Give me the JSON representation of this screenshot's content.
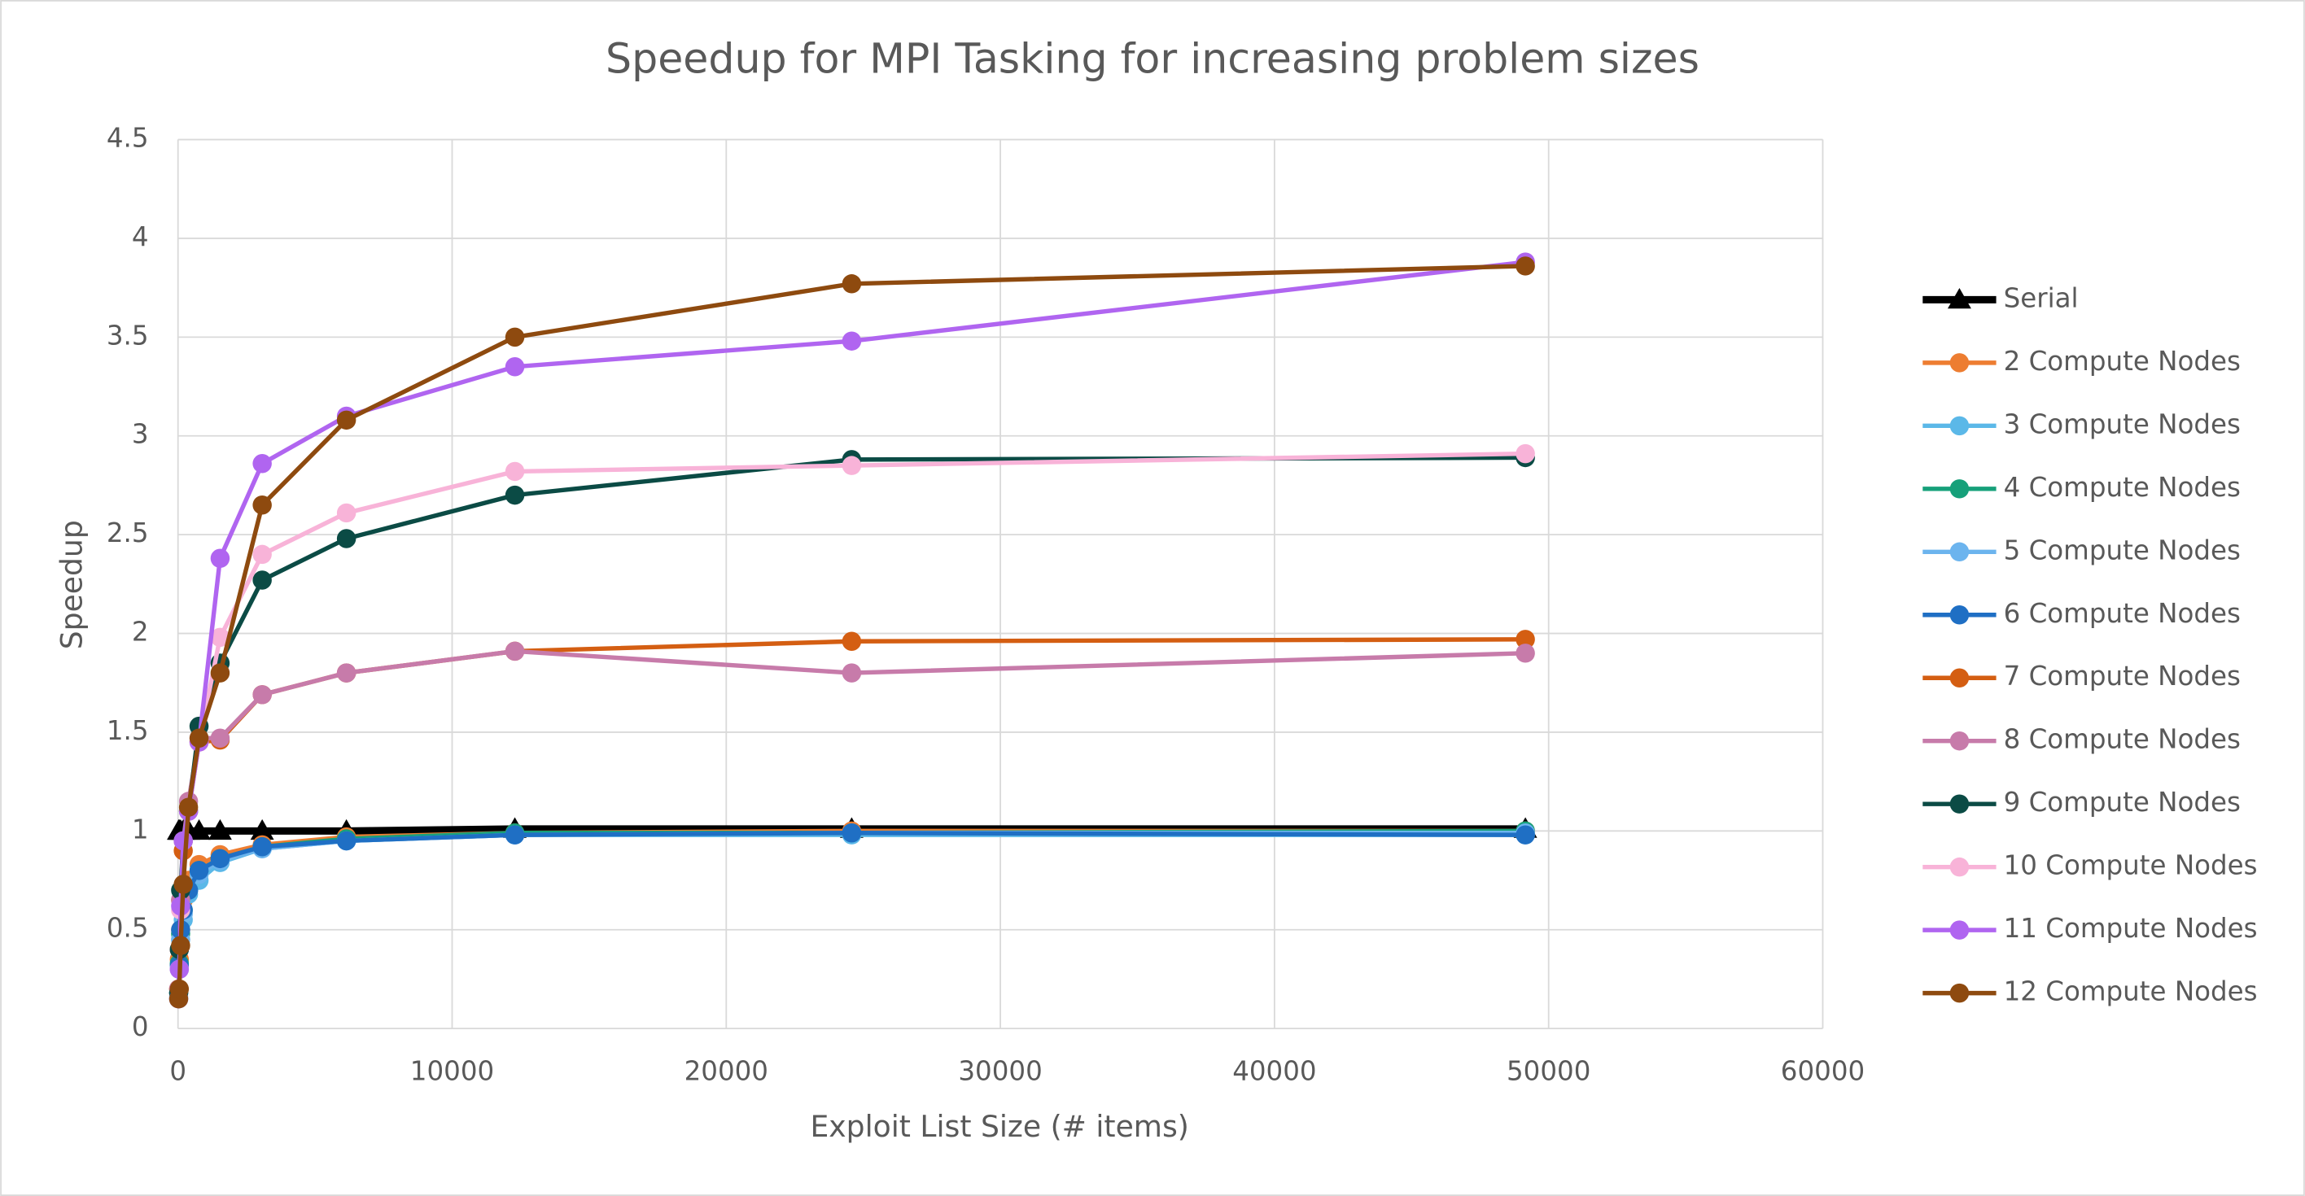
{
  "chart_data": {
    "type": "line",
    "title": "Speedup for MPI Tasking for increasing problem sizes",
    "x_label": "Exploit List Size (# items)",
    "y_label": "Speedup",
    "x": [
      24,
      48,
      96,
      192,
      384,
      768,
      1536,
      3072,
      6144,
      12288,
      24576,
      49152
    ],
    "xlim": [
      0,
      60000
    ],
    "xticks": [
      0,
      10000,
      20000,
      30000,
      40000,
      50000,
      60000
    ],
    "ylim": [
      0,
      4.5
    ],
    "yticks": [
      0,
      0.5,
      1,
      1.5,
      2,
      2.5,
      3,
      3.5,
      4,
      4.5
    ],
    "grid": true,
    "legend": "right",
    "series": [
      {
        "name": "Serial",
        "color": "#000000",
        "marker": "triangle",
        "values": [
          1,
          1,
          1,
          1,
          1,
          1,
          1,
          1,
          1,
          1.01,
          1.01,
          1.01
        ]
      },
      {
        "name": "2 Compute Nodes",
        "color": "#ED7D31",
        "values": [
          0.2,
          0.35,
          0.5,
          0.65,
          0.75,
          0.83,
          0.88,
          0.93,
          0.97,
          0.99,
          1.0,
          1.0
        ]
      },
      {
        "name": "3 Compute Nodes",
        "color": "#5BB8E8",
        "values": [
          0.15,
          0.3,
          0.45,
          0.55,
          0.68,
          0.75,
          0.84,
          0.91,
          0.95,
          0.98,
          0.98,
          0.98
        ]
      },
      {
        "name": "4 Compute Nodes",
        "color": "#16A07A",
        "values": [
          0.18,
          0.33,
          0.48,
          0.6,
          0.7,
          0.8,
          0.86,
          0.92,
          0.96,
          0.99,
          0.99,
          1.0
        ]
      },
      {
        "name": "5 Compute Nodes",
        "color": "#6CB4EE",
        "values": [
          0.16,
          0.3,
          0.45,
          0.58,
          0.7,
          0.78,
          0.85,
          0.91,
          0.95,
          0.98,
          0.99,
          0.99
        ]
      },
      {
        "name": "6 Compute Nodes",
        "color": "#1F6FC4",
        "values": [
          0.18,
          0.32,
          0.5,
          0.6,
          0.7,
          0.8,
          0.86,
          0.92,
          0.95,
          0.98,
          0.99,
          0.98
        ]
      },
      {
        "name": "7 Compute Nodes",
        "color": "#D45E12",
        "values": [
          0.2,
          0.4,
          0.65,
          0.9,
          1.1,
          1.45,
          1.46,
          1.69,
          1.8,
          1.91,
          1.96,
          1.97
        ]
      },
      {
        "name": "8 Compute Nodes",
        "color": "#C77BAA",
        "values": [
          0.2,
          0.4,
          0.65,
          0.95,
          1.15,
          1.47,
          1.47,
          1.69,
          1.8,
          1.91,
          1.8,
          1.9
        ]
      },
      {
        "name": "9 Compute Nodes",
        "color": "#0B4B45",
        "values": [
          0.18,
          0.4,
          0.7,
          0.95,
          1.1,
          1.53,
          1.85,
          2.27,
          2.48,
          2.7,
          2.88,
          2.89
        ]
      },
      {
        "name": "10 Compute Nodes",
        "color": "#F8B3D8",
        "values": [
          0.15,
          0.3,
          0.6,
          0.95,
          1.1,
          1.45,
          1.98,
          2.4,
          2.61,
          2.82,
          2.85,
          2.91
        ]
      },
      {
        "name": "11 Compute Nodes",
        "color": "#B065F0",
        "values": [
          0.15,
          0.3,
          0.62,
          0.95,
          1.1,
          1.45,
          2.38,
          2.86,
          3.1,
          3.35,
          3.48,
          3.88
        ]
      },
      {
        "name": "12 Compute Nodes",
        "color": "#8E4A0F",
        "values": [
          0.15,
          0.2,
          0.42,
          0.73,
          1.12,
          1.47,
          1.8,
          2.65,
          3.08,
          3.5,
          3.77,
          3.86
        ]
      }
    ]
  }
}
